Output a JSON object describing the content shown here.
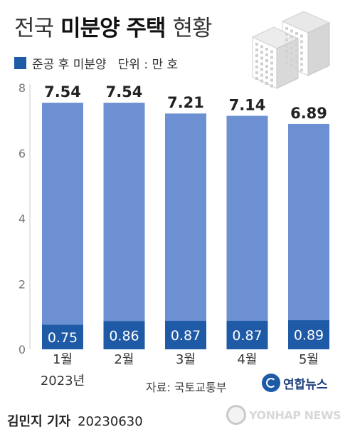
{
  "header": {
    "title_part1": "전국",
    "title_part2": "미분양 주택",
    "title_part3": "현황",
    "legend_label": "준공 후 미분양",
    "unit": "단위 : 만 호"
  },
  "chart_data": {
    "type": "bar",
    "title": "전국 미분양 주택 현황",
    "categories": [
      "1월",
      "2월",
      "3월",
      "4월",
      "5월"
    ],
    "year_label": "2023년",
    "series": [
      {
        "name": "",
        "values": [
          7.54,
          7.54,
          7.21,
          7.14,
          6.89
        ]
      },
      {
        "name": "준공 후 미분양",
        "values": [
          0.75,
          0.86,
          0.87,
          0.87,
          0.89
        ]
      }
    ],
    "yticks": [
      "0",
      "2",
      "4",
      "6",
      "8"
    ],
    "ylim": [
      0,
      8
    ],
    "grid": false,
    "legend": "top-left",
    "colors": {
      "total": "#6c90d2",
      "completed": "#1f5aa6",
      "total_label": "#222222",
      "inner_label": "#ffffff"
    }
  },
  "footer": {
    "source": "자료: 국토교통부",
    "logo_text": "연합뉴스",
    "reporter": "김민지 기자",
    "date": "20230630",
    "watermark": "YONHAP NEWS",
    "logo_icon": "yonhap-logo-icon",
    "illustration_icon": "apartment-buildings-icon"
  }
}
